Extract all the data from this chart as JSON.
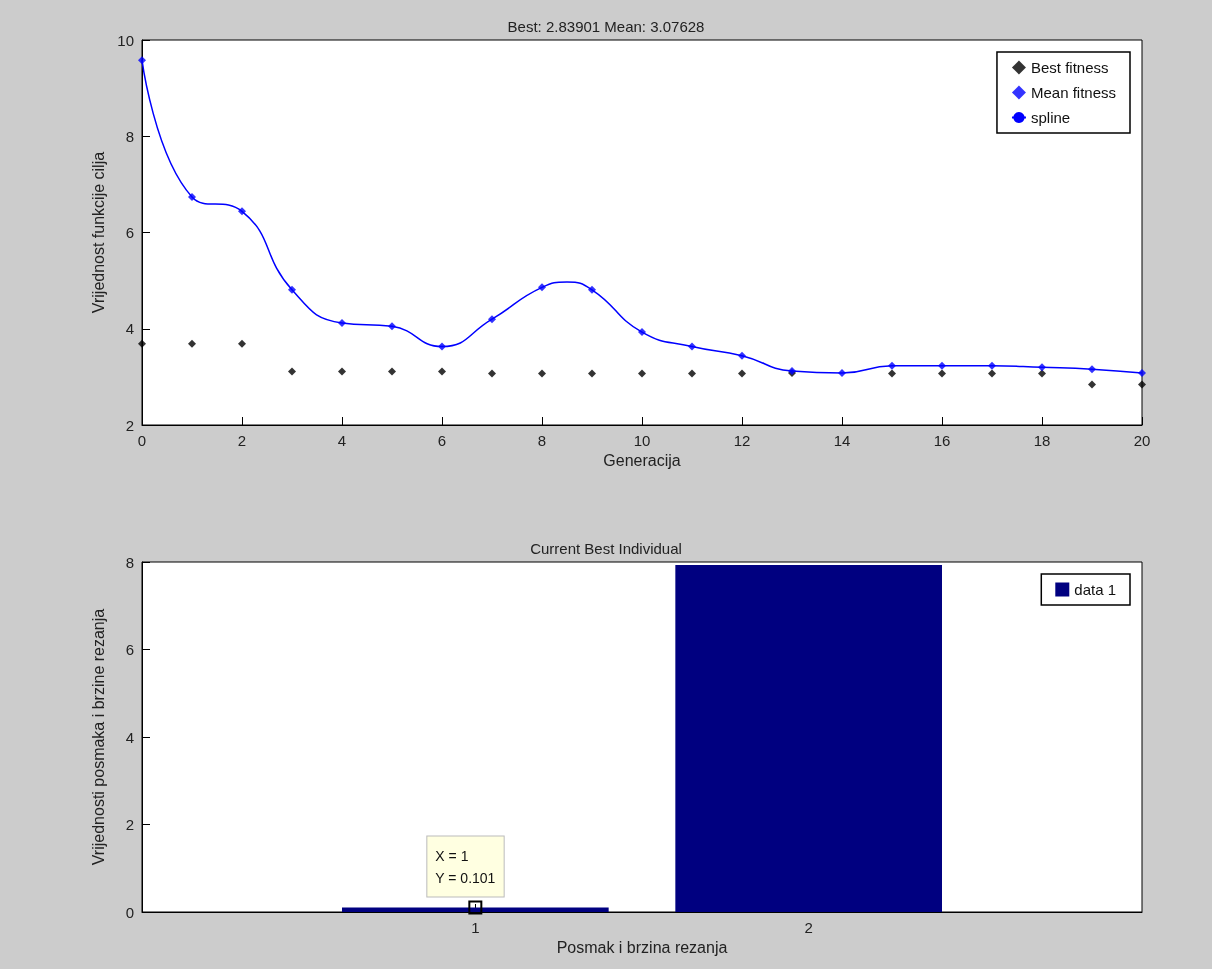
{
  "chart_data": [
    {
      "type": "scatter",
      "title": "Best: 2.83901 Mean: 3.07628",
      "xlabel": "Generacija",
      "ylabel": "Vrijednost funkcije cilja",
      "x": [
        0,
        1,
        2,
        3,
        4,
        5,
        6,
        7,
        8,
        9,
        10,
        11,
        12,
        13,
        14,
        15,
        16,
        17,
        18,
        19,
        20
      ],
      "xlim": [
        0,
        20
      ],
      "xticks": [
        0,
        2,
        4,
        6,
        8,
        10,
        12,
        14,
        16,
        18,
        20
      ],
      "ylim": [
        2,
        10
      ],
      "yticks": [
        2,
        4,
        6,
        8,
        10
      ],
      "marker": "diamond",
      "legend": "top right",
      "grid": false,
      "series": [
        {
          "name": "Best fitness",
          "color": "#000000",
          "values": [
            3.69,
            3.69,
            3.69,
            3.11,
            3.11,
            3.11,
            3.11,
            3.07,
            3.07,
            3.07,
            3.07,
            3.07,
            3.07,
            3.08,
            null,
            3.07,
            3.07,
            3.07,
            3.07,
            2.84,
            2.84
          ]
        },
        {
          "name": "Mean fitness",
          "color": "#0000ff",
          "values": [
            9.58,
            6.74,
            6.44,
            4.81,
            4.12,
            4.05,
            3.63,
            4.2,
            4.86,
            4.81,
            3.93,
            3.63,
            3.44,
            3.12,
            3.08,
            3.23,
            3.23,
            3.23,
            3.2,
            3.16,
            3.08
          ]
        },
        {
          "name": "spline",
          "type": "line",
          "color": "#0000ff",
          "marker": "none",
          "line_style": "solid",
          "x": [
            0,
            1,
            2,
            3,
            4,
            5,
            6,
            7,
            8,
            8.5,
            9,
            10,
            11,
            12,
            13,
            14,
            15,
            16,
            17,
            18,
            19,
            20
          ],
          "values": [
            9.58,
            6.74,
            6.44,
            4.81,
            4.12,
            4.05,
            3.63,
            4.2,
            4.86,
            4.97,
            4.81,
            3.93,
            3.63,
            3.44,
            3.12,
            3.08,
            3.23,
            3.23,
            3.23,
            3.2,
            3.16,
            3.08
          ]
        }
      ]
    },
    {
      "type": "bar",
      "title": "Current Best Individual",
      "xlabel": "Posmak i brzina rezanja",
      "ylabel": "Vrijednosti posmaka i brzine rezanja",
      "x": [
        1,
        2
      ],
      "xlim": [
        0,
        3
      ],
      "xticks": [
        1,
        2
      ],
      "ylim": [
        0,
        8
      ],
      "yticks": [
        0,
        2,
        4,
        6,
        8
      ],
      "legend": "top right",
      "grid": false,
      "series": [
        {
          "name": "data 1",
          "color": "#000080",
          "values": [
            0.101,
            7.93
          ]
        }
      ],
      "annotations": [
        {
          "text": "X = 1\nY = 0.101",
          "x": 1,
          "y": 0.101
        }
      ]
    }
  ]
}
